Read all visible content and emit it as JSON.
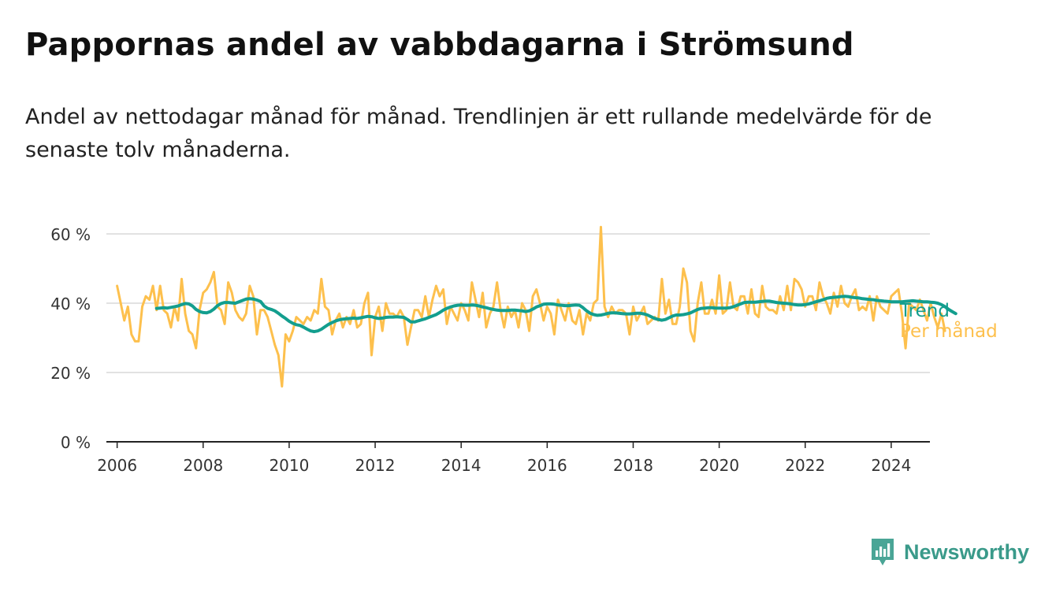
{
  "title": "Pappornas andel av vabbdagarna i Strömsund",
  "subtitle": "Andel av nettodagar månad för månad. Trendlinjen är ett rullande medelvärde för de senaste tolv månaderna.",
  "brand": {
    "name": "Newsworthy",
    "color": "#3a9a8a"
  },
  "chart_data": {
    "type": "line",
    "title": "Pappornas andel av vabbdagarna i Strömsund",
    "xlabel": "",
    "ylabel": "",
    "xlim": [
      2005.75,
      2024.9
    ],
    "ylim": [
      0,
      60
    ],
    "yticks": [
      0,
      20,
      40,
      60
    ],
    "ytick_labels": [
      "0 %",
      "20 %",
      "40 %",
      "60 %"
    ],
    "xticks": [
      2006,
      2008,
      2010,
      2012,
      2014,
      2016,
      2018,
      2020,
      2022,
      2024
    ],
    "xtick_labels": [
      "2006",
      "2008",
      "2010",
      "2012",
      "2014",
      "2016",
      "2018",
      "2020",
      "2022",
      "2024"
    ],
    "grid": true,
    "legend": "inline labels at the right end of each line",
    "series": [
      {
        "name": "Per månad",
        "color": "#fdc04d",
        "x_start": 2006.0,
        "x_step": 0.0833333,
        "values": [
          45,
          40,
          35,
          39,
          31,
          29,
          29,
          39,
          42,
          41,
          45,
          38,
          45,
          38,
          37,
          33,
          39,
          35,
          47,
          37,
          32,
          31,
          27,
          38,
          43,
          44,
          46,
          49,
          39,
          38,
          34,
          46,
          43,
          38,
          36,
          35,
          37,
          45,
          42,
          31,
          38,
          38,
          36,
          32,
          28,
          25,
          16,
          31,
          29,
          32,
          36,
          35,
          34,
          36,
          35,
          38,
          37,
          47,
          39,
          38,
          31,
          35,
          37,
          33,
          36,
          34,
          38,
          33,
          34,
          40,
          43,
          25,
          36,
          39,
          32,
          40,
          37,
          37,
          36,
          38,
          36,
          28,
          33,
          38,
          38,
          36,
          42,
          36,
          41,
          45,
          42,
          44,
          34,
          39,
          37,
          35,
          40,
          38,
          35,
          46,
          41,
          36,
          43,
          33,
          37,
          39,
          46,
          38,
          33,
          39,
          36,
          38,
          33,
          40,
          38,
          32,
          42,
          44,
          40,
          35,
          39,
          37,
          31,
          41,
          38,
          35,
          40,
          35,
          34,
          38,
          31,
          37,
          35,
          40,
          41,
          62,
          39,
          36,
          39,
          37,
          38,
          38,
          37,
          31,
          39,
          35,
          37,
          39,
          34,
          35,
          36,
          35,
          47,
          37,
          41,
          34,
          34,
          39,
          50,
          46,
          32,
          29,
          40,
          46,
          37,
          37,
          41,
          37,
          48,
          37,
          38,
          46,
          39,
          38,
          42,
          42,
          37,
          44,
          37,
          36,
          45,
          39,
          38,
          38,
          37,
          42,
          38,
          45,
          38,
          47,
          46,
          44,
          39,
          42,
          42,
          38,
          46,
          42,
          40,
          37,
          43,
          39,
          45,
          40,
          39,
          42,
          44,
          38,
          39,
          38,
          42,
          35,
          42,
          39,
          38,
          37,
          42,
          43,
          44,
          37,
          27,
          40,
          39,
          38,
          41,
          38,
          35,
          40,
          36,
          33,
          37,
          32
        ]
      },
      {
        "name": "Trend",
        "color": "#139e8e",
        "x_start": 2006.917,
        "x_step": 0.0833333,
        "values": [
          38.5,
          38.6,
          38.7,
          38.6,
          38.8,
          39.0,
          39.2,
          39.6,
          39.9,
          39.8,
          39.2,
          38.2,
          37.6,
          37.3,
          37.2,
          37.6,
          38.3,
          39.3,
          39.9,
          40.2,
          40.2,
          40.1,
          40.0,
          40.4,
          40.8,
          41.2,
          41.3,
          41.2,
          40.9,
          40.5,
          39.2,
          38.5,
          38.2,
          37.8,
          37.1,
          36.3,
          35.6,
          34.8,
          34.2,
          33.8,
          33.6,
          33.1,
          32.5,
          32.0,
          31.8,
          32.0,
          32.5,
          33.2,
          33.9,
          34.4,
          34.9,
          35.2,
          35.4,
          35.5,
          35.6,
          35.7,
          35.6,
          35.8,
          36.0,
          36.2,
          36.1,
          35.8,
          35.6,
          35.7,
          35.9,
          36.0,
          36.0,
          36.1,
          36.0,
          35.9,
          35.3,
          34.6,
          34.6,
          34.9,
          35.2,
          35.5,
          35.9,
          36.3,
          36.7,
          37.3,
          38.0,
          38.5,
          38.9,
          39.2,
          39.4,
          39.5,
          39.4,
          39.4,
          39.5,
          39.4,
          39.2,
          38.9,
          38.7,
          38.4,
          38.2,
          38.0,
          37.9,
          37.9,
          37.9,
          38.0,
          38.0,
          37.9,
          37.8,
          37.6,
          37.8,
          38.3,
          38.9,
          39.3,
          39.7,
          39.8,
          39.8,
          39.7,
          39.5,
          39.4,
          39.3,
          39.3,
          39.4,
          39.5,
          39.4,
          38.7,
          37.8,
          37.1,
          36.7,
          36.5,
          36.6,
          36.8,
          37.1,
          37.2,
          37.2,
          37.1,
          37.0,
          36.9,
          36.9,
          37.0,
          37.1,
          37.1,
          36.9,
          36.6,
          36.1,
          35.6,
          35.3,
          35.1,
          35.3,
          35.8,
          36.3,
          36.6,
          36.6,
          36.7,
          36.9,
          37.2,
          37.7,
          38.2,
          38.5,
          38.6,
          38.7,
          38.7,
          38.6,
          38.6,
          38.6,
          38.6,
          38.7,
          39.0,
          39.4,
          39.8,
          40.2,
          40.3,
          40.3,
          40.3,
          40.4,
          40.5,
          40.6,
          40.6,
          40.4,
          40.2,
          40.1,
          40.0,
          39.9,
          39.8,
          39.6,
          39.5,
          39.5,
          39.6,
          39.8,
          40.1,
          40.4,
          40.7,
          41.0,
          41.4,
          41.6,
          41.7,
          41.8,
          41.9,
          42.0,
          41.9,
          41.7,
          41.6,
          41.5,
          41.3,
          41.2,
          41.1,
          41.0,
          40.8,
          40.7,
          40.6,
          40.5,
          40.4,
          40.4,
          40.4,
          40.4,
          40.5,
          40.6,
          40.7,
          40.6,
          40.5,
          40.4,
          40.4,
          40.3,
          40.2,
          40.0,
          39.6,
          39.0,
          38.2,
          37.6,
          37.0
        ]
      }
    ]
  }
}
